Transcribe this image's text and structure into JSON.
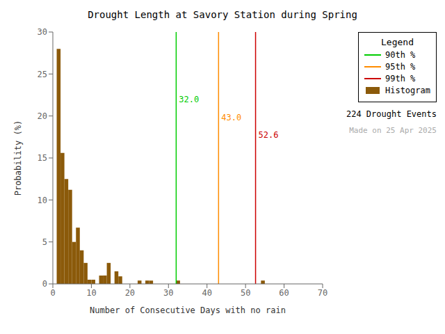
{
  "chart_data": {
    "type": "histogram",
    "title": "Drought Length at Savory Station during Spring",
    "xlabel": "Number of Consecutive Days with no rain",
    "ylabel": "Probability (%)",
    "name": "Histogram",
    "color": "#8B5A0A",
    "bins": [
      1,
      2,
      3,
      4,
      5,
      6,
      7,
      8,
      9,
      10,
      11,
      12,
      13,
      14,
      15,
      16,
      17,
      18,
      19,
      20,
      21,
      22,
      23,
      24,
      25,
      26,
      27,
      28,
      29,
      30,
      31,
      32,
      33,
      34,
      35,
      36,
      37,
      38,
      39,
      40,
      41,
      42,
      43,
      44,
      45,
      46,
      47,
      48,
      49,
      50,
      51,
      52,
      53,
      54,
      55,
      56,
      57,
      58,
      59,
      60,
      61
    ],
    "values": [
      28.0,
      15.6,
      12.5,
      11.2,
      5.0,
      6.7,
      4.0,
      2.5,
      0.5,
      0.5,
      0.0,
      1.0,
      1.0,
      2.5,
      0.0,
      1.5,
      0.9,
      0.0,
      0.0,
      0.0,
      0.0,
      0.4,
      0.0,
      0.4,
      0.4,
      0.0,
      0.0,
      0.0,
      0.0,
      0.0,
      0.0,
      0.4,
      0.0,
      0.0,
      0.0,
      0.0,
      0.0,
      0.0,
      0.0,
      0.0,
      0.0,
      0.0,
      0.0,
      0.0,
      0.0,
      0.0,
      0.0,
      0.0,
      0.0,
      0.0,
      0.0,
      0.0,
      0.0,
      0.4,
      0.0,
      0.0,
      0.0,
      0.0,
      0.0,
      0.0
    ],
    "vlines": [
      {
        "name": "90th %",
        "value": 32.0,
        "label": "32.0",
        "color": "#00CC00"
      },
      {
        "name": "95th %",
        "value": 43.0,
        "label": "43.0",
        "color": "#FF8C00"
      },
      {
        "name": "99th %",
        "value": 52.6,
        "label": "52.6",
        "color": "#CC0000"
      }
    ],
    "xlim": [
      0,
      70
    ],
    "xticks": [
      0,
      10,
      20,
      30,
      40,
      50,
      60,
      70
    ],
    "ylim": [
      0,
      30
    ],
    "yticks": [
      0,
      5,
      10,
      15,
      20,
      25,
      30
    ],
    "grid": false,
    "legend": "upper right",
    "legend_title": "Legend",
    "annotations": [
      {
        "text": "224 Drought Events"
      },
      {
        "text": "Made on 25 Apr 2025",
        "color": "#AAAAAA"
      }
    ]
  }
}
